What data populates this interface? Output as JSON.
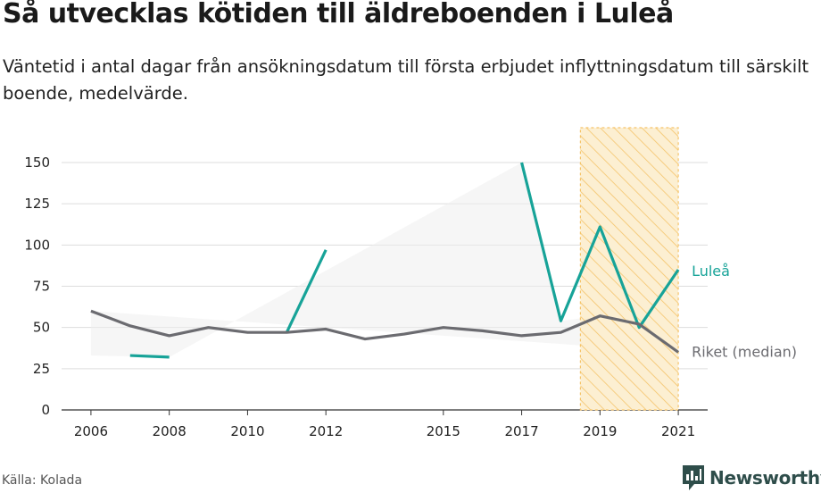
{
  "title": "Så utvecklas kötiden till äldreboenden i Luleå",
  "subtitle": "Väntetid i antal dagar från ansökningsdatum till första erbjudet inflyttningsdatum till särskilt boende, medelvärde.",
  "source": "Källa: Kolada",
  "brand": "Newsworthy",
  "colors": {
    "lulea": "#17a398",
    "riket": "#6b6b70",
    "highlight_fill": "#fcefd2",
    "highlight_stripe": "#f5c46a",
    "band": "#eeeeee"
  },
  "chart_data": {
    "type": "line",
    "x": [
      2006,
      2007,
      2008,
      2009,
      2010,
      2011,
      2012,
      2013,
      2014,
      2015,
      2016,
      2017,
      2018,
      2019,
      2020,
      2021
    ],
    "x_tick_labels": [
      "2006",
      "2008",
      "2010",
      "2012",
      "2015",
      "2017",
      "2019",
      "2021"
    ],
    "y_ticks": [
      0,
      25,
      50,
      75,
      100,
      125,
      150
    ],
    "ylim": [
      0,
      150
    ],
    "grid": true,
    "series": [
      {
        "name": "Luleå",
        "values": [
          null,
          33,
          32,
          null,
          null,
          47,
          97,
          null,
          null,
          null,
          null,
          150,
          54,
          111,
          50,
          85
        ]
      },
      {
        "name": "Riket (median)",
        "values": [
          60,
          51,
          45,
          50,
          47,
          47,
          49,
          43,
          46,
          50,
          48,
          45,
          47,
          57,
          52,
          35
        ]
      }
    ],
    "highlight_range": [
      2018.5,
      2021
    ],
    "band": {
      "lower": [
        33,
        32,
        null,
        null,
        null,
        null,
        50,
        150,
        54
      ],
      "x": [
        2006,
        2008,
        null,
        null,
        null,
        null,
        null,
        2017,
        2018
      ]
    }
  }
}
